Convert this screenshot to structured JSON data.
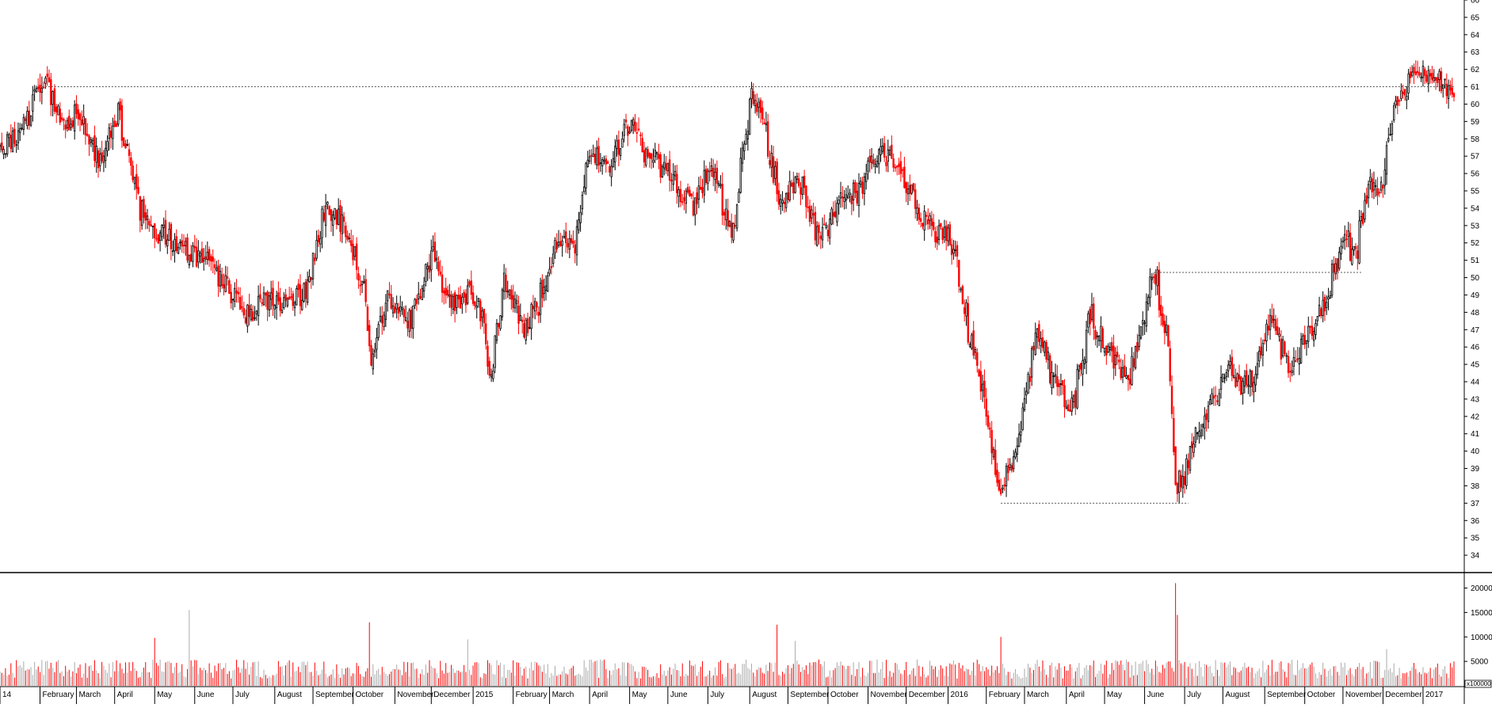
{
  "chart_data": [
    {
      "type": "candlestick",
      "title": "",
      "xlabel": "",
      "ylabel": "",
      "ylim": [
        33,
        66
      ],
      "y_ticks": [
        34,
        35,
        36,
        37,
        38,
        39,
        40,
        41,
        42,
        43,
        44,
        45,
        46,
        47,
        48,
        49,
        50,
        51,
        52,
        53,
        54,
        55,
        56,
        57,
        58,
        59,
        60,
        61,
        62,
        63,
        64,
        65,
        66
      ],
      "y_axis_side": "right",
      "grid": false,
      "colors": {
        "up": "#000000",
        "down": "#ff0000",
        "reference_line": "#555555",
        "axis": "#000000"
      },
      "key_closes": [
        [
          "2014-01-02",
          57.5
        ],
        [
          "2014-01-20",
          58.5
        ],
        [
          "2014-02-05",
          61.5
        ],
        [
          "2014-02-20",
          59.0
        ],
        [
          "2014-03-05",
          59.5
        ],
        [
          "2014-03-20",
          56.5
        ],
        [
          "2014-04-03",
          59.5
        ],
        [
          "2014-04-20",
          54.0
        ],
        [
          "2014-05-05",
          52.5
        ],
        [
          "2014-05-25",
          51.5
        ],
        [
          "2014-06-10",
          51.0
        ],
        [
          "2014-06-25",
          49.5
        ],
        [
          "2014-07-10",
          48.0
        ],
        [
          "2014-07-25",
          48.5
        ],
        [
          "2014-08-10",
          48.5
        ],
        [
          "2014-08-25",
          49.0
        ],
        [
          "2014-09-10",
          54.0
        ],
        [
          "2014-09-25",
          53.0
        ],
        [
          "2014-10-08",
          50.0
        ],
        [
          "2014-10-15",
          45.5
        ],
        [
          "2014-10-28",
          49.0
        ],
        [
          "2014-11-15",
          47.5
        ],
        [
          "2014-12-01",
          51.5
        ],
        [
          "2014-12-15",
          48.5
        ],
        [
          "2014-12-31",
          49.0
        ],
        [
          "2015-01-08",
          48.0
        ],
        [
          "2015-01-15",
          44.5
        ],
        [
          "2015-01-25",
          50.0
        ],
        [
          "2015-02-10",
          47.0
        ],
        [
          "2015-02-20",
          48.5
        ],
        [
          "2015-03-05",
          51.5
        ],
        [
          "2015-03-20",
          52.0
        ],
        [
          "2015-04-01",
          57.0
        ],
        [
          "2015-04-15",
          56.5
        ],
        [
          "2015-05-01",
          59.0
        ],
        [
          "2015-05-15",
          57.0
        ],
        [
          "2015-06-01",
          56.0
        ],
        [
          "2015-06-20",
          54.0
        ],
        [
          "2015-07-05",
          56.5
        ],
        [
          "2015-07-20",
          52.0
        ],
        [
          "2015-08-03",
          60.5
        ],
        [
          "2015-08-13",
          59.0
        ],
        [
          "2015-08-24",
          54.5
        ],
        [
          "2015-09-10",
          55.5
        ],
        [
          "2015-09-25",
          52.0
        ],
        [
          "2015-10-10",
          54.5
        ],
        [
          "2015-10-25",
          55.0
        ],
        [
          "2015-11-10",
          57.5
        ],
        [
          "2015-11-25",
          56.0
        ],
        [
          "2015-12-10",
          54.0
        ],
        [
          "2015-12-25",
          52.5
        ],
        [
          "2016-01-05",
          52.0
        ],
        [
          "2016-01-15",
          48.0
        ],
        [
          "2016-01-25",
          44.5
        ],
        [
          "2016-02-05",
          40.0
        ],
        [
          "2016-02-11",
          37.5
        ],
        [
          "2016-02-25",
          41.0
        ],
        [
          "2016-03-10",
          47.0
        ],
        [
          "2016-03-25",
          43.5
        ],
        [
          "2016-04-07",
          42.5
        ],
        [
          "2016-04-20",
          48.0
        ],
        [
          "2016-05-05",
          45.5
        ],
        [
          "2016-05-20",
          44.0
        ],
        [
          "2016-06-08",
          50.5
        ],
        [
          "2016-06-20",
          46.0
        ],
        [
          "2016-06-24",
          37.5
        ],
        [
          "2016-07-05",
          39.5
        ],
        [
          "2016-07-20",
          42.5
        ],
        [
          "2016-08-05",
          44.5
        ],
        [
          "2016-08-20",
          43.5
        ],
        [
          "2016-09-05",
          47.5
        ],
        [
          "2016-09-20",
          45.0
        ],
        [
          "2016-10-05",
          46.5
        ],
        [
          "2016-10-20",
          49.0
        ],
        [
          "2016-11-01",
          52.5
        ],
        [
          "2016-11-10",
          51.0
        ],
        [
          "2016-11-20",
          55.5
        ],
        [
          "2016-12-01",
          55.0
        ],
        [
          "2016-12-10",
          60.0
        ],
        [
          "2016-12-25",
          61.5
        ],
        [
          "2017-01-10",
          62.0
        ],
        [
          "2017-01-25",
          60.0
        ]
      ],
      "reference_lines": [
        {
          "y": 61,
          "from": "2014-02-04",
          "to": "2017-01-31"
        },
        {
          "y": 50.3,
          "from": "2016-06-08",
          "to": "2016-11-15"
        },
        {
          "y": 37,
          "from": "2016-02-11",
          "to": "2016-07-05"
        }
      ]
    },
    {
      "type": "bar",
      "title": "",
      "xlabel": "",
      "ylabel": "",
      "ylim": [
        0,
        23000
      ],
      "y_ticks": [
        5000,
        10000,
        15000,
        20000
      ],
      "y_scale_label": "x100000",
      "y_axis_side": "right",
      "grid": false,
      "colors": {
        "up": "#aaaaaa",
        "down": "#ff0000"
      },
      "baseline_volume": 3000,
      "volume_spikes": [
        [
          "2014-05-01",
          9800
        ],
        [
          "2014-05-28",
          15500
        ],
        [
          "2014-10-14",
          13000
        ],
        [
          "2014-12-29",
          9500
        ],
        [
          "2015-08-24",
          12500
        ],
        [
          "2015-09-05",
          9200
        ],
        [
          "2016-02-11",
          10000
        ],
        [
          "2016-06-24",
          21000
        ],
        [
          "2016-06-27",
          14500
        ],
        [
          "2016-12-05",
          7500
        ]
      ]
    }
  ],
  "x_axis": {
    "months": [
      {
        "label": "14",
        "date": "2014-01-01"
      },
      {
        "label": "February",
        "date": "2014-02-01"
      },
      {
        "label": "March",
        "date": "2014-03-01"
      },
      {
        "label": "April",
        "date": "2014-04-01"
      },
      {
        "label": "May",
        "date": "2014-05-01"
      },
      {
        "label": "June",
        "date": "2014-06-01"
      },
      {
        "label": "July",
        "date": "2014-07-01"
      },
      {
        "label": "August",
        "date": "2014-08-01"
      },
      {
        "label": "September",
        "date": "2014-09-01"
      },
      {
        "label": "October",
        "date": "2014-10-01"
      },
      {
        "label": "November",
        "date": "2014-11-01"
      },
      {
        "label": "December",
        "date": "2014-12-01"
      },
      {
        "label": "2015",
        "date": "2015-01-01"
      },
      {
        "label": "February",
        "date": "2015-02-01"
      },
      {
        "label": "March",
        "date": "2015-03-01"
      },
      {
        "label": "April",
        "date": "2015-04-01"
      },
      {
        "label": "May",
        "date": "2015-05-01"
      },
      {
        "label": "June",
        "date": "2015-06-01"
      },
      {
        "label": "July",
        "date": "2015-07-01"
      },
      {
        "label": "August",
        "date": "2015-08-01"
      },
      {
        "label": "September",
        "date": "2015-09-01"
      },
      {
        "label": "October",
        "date": "2015-10-01"
      },
      {
        "label": "November",
        "date": "2015-11-01"
      },
      {
        "label": "December",
        "date": "2015-12-01"
      },
      {
        "label": "2016",
        "date": "2016-01-01"
      },
      {
        "label": "February",
        "date": "2016-02-01"
      },
      {
        "label": "March",
        "date": "2016-03-01"
      },
      {
        "label": "April",
        "date": "2016-04-01"
      },
      {
        "label": "May",
        "date": "2016-05-01"
      },
      {
        "label": "June",
        "date": "2016-06-01"
      },
      {
        "label": "July",
        "date": "2016-07-01"
      },
      {
        "label": "August",
        "date": "2016-08-01"
      },
      {
        "label": "September",
        "date": "2016-09-01"
      },
      {
        "label": "October",
        "date": "2016-10-01"
      },
      {
        "label": "November",
        "date": "2016-11-01"
      },
      {
        "label": "December",
        "date": "2016-12-01"
      },
      {
        "label": "2017",
        "date": "2017-01-01"
      }
    ]
  }
}
